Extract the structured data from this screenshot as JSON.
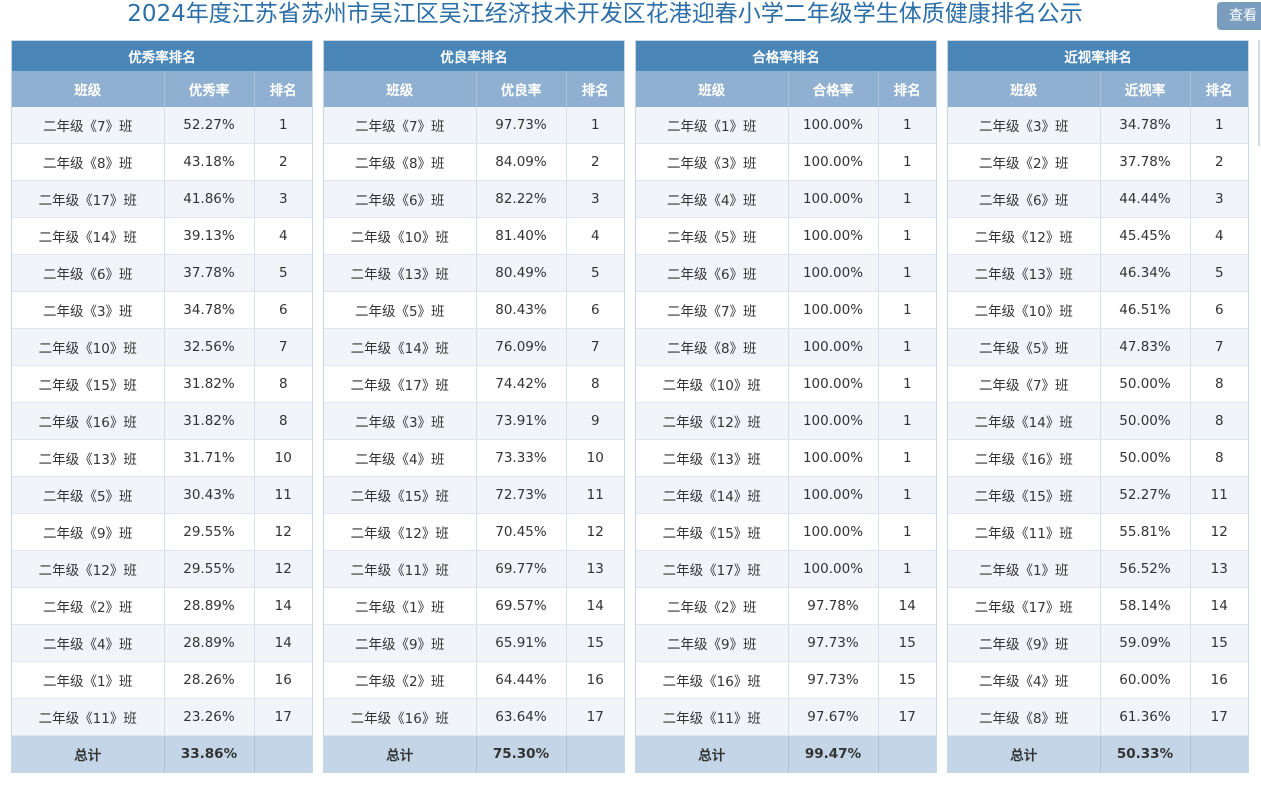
{
  "page": {
    "title": "2024年度江苏省苏州市吴江区吴江经济技术开发区花港迎春小学二年级学生体质健康排名公示",
    "view_button": "查看"
  },
  "panels": [
    {
      "caption": "优秀率排名",
      "headers": [
        "班级",
        "优秀率",
        "排名"
      ],
      "rows": [
        [
          "二年级《7》班",
          "52.27%",
          "1"
        ],
        [
          "二年级《8》班",
          "43.18%",
          "2"
        ],
        [
          "二年级《17》班",
          "41.86%",
          "3"
        ],
        [
          "二年级《14》班",
          "39.13%",
          "4"
        ],
        [
          "二年级《6》班",
          "37.78%",
          "5"
        ],
        [
          "二年级《3》班",
          "34.78%",
          "6"
        ],
        [
          "二年级《10》班",
          "32.56%",
          "7"
        ],
        [
          "二年级《15》班",
          "31.82%",
          "8"
        ],
        [
          "二年级《16》班",
          "31.82%",
          "8"
        ],
        [
          "二年级《13》班",
          "31.71%",
          "10"
        ],
        [
          "二年级《5》班",
          "30.43%",
          "11"
        ],
        [
          "二年级《9》班",
          "29.55%",
          "12"
        ],
        [
          "二年级《12》班",
          "29.55%",
          "12"
        ],
        [
          "二年级《2》班",
          "28.89%",
          "14"
        ],
        [
          "二年级《4》班",
          "28.89%",
          "14"
        ],
        [
          "二年级《1》班",
          "28.26%",
          "16"
        ],
        [
          "二年级《11》班",
          "23.26%",
          "17"
        ]
      ],
      "total_label": "总计",
      "total_value": "33.86%"
    },
    {
      "caption": "优良率排名",
      "headers": [
        "班级",
        "优良率",
        "排名"
      ],
      "rows": [
        [
          "二年级《7》班",
          "97.73%",
          "1"
        ],
        [
          "二年级《8》班",
          "84.09%",
          "2"
        ],
        [
          "二年级《6》班",
          "82.22%",
          "3"
        ],
        [
          "二年级《10》班",
          "81.40%",
          "4"
        ],
        [
          "二年级《13》班",
          "80.49%",
          "5"
        ],
        [
          "二年级《5》班",
          "80.43%",
          "6"
        ],
        [
          "二年级《14》班",
          "76.09%",
          "7"
        ],
        [
          "二年级《17》班",
          "74.42%",
          "8"
        ],
        [
          "二年级《3》班",
          "73.91%",
          "9"
        ],
        [
          "二年级《4》班",
          "73.33%",
          "10"
        ],
        [
          "二年级《15》班",
          "72.73%",
          "11"
        ],
        [
          "二年级《12》班",
          "70.45%",
          "12"
        ],
        [
          "二年级《11》班",
          "69.77%",
          "13"
        ],
        [
          "二年级《1》班",
          "69.57%",
          "14"
        ],
        [
          "二年级《9》班",
          "65.91%",
          "15"
        ],
        [
          "二年级《2》班",
          "64.44%",
          "16"
        ],
        [
          "二年级《16》班",
          "63.64%",
          "17"
        ]
      ],
      "total_label": "总计",
      "total_value": "75.30%"
    },
    {
      "caption": "合格率排名",
      "headers": [
        "班级",
        "合格率",
        "排名"
      ],
      "rows": [
        [
          "二年级《1》班",
          "100.00%",
          "1"
        ],
        [
          "二年级《3》班",
          "100.00%",
          "1"
        ],
        [
          "二年级《4》班",
          "100.00%",
          "1"
        ],
        [
          "二年级《5》班",
          "100.00%",
          "1"
        ],
        [
          "二年级《6》班",
          "100.00%",
          "1"
        ],
        [
          "二年级《7》班",
          "100.00%",
          "1"
        ],
        [
          "二年级《8》班",
          "100.00%",
          "1"
        ],
        [
          "二年级《10》班",
          "100.00%",
          "1"
        ],
        [
          "二年级《12》班",
          "100.00%",
          "1"
        ],
        [
          "二年级《13》班",
          "100.00%",
          "1"
        ],
        [
          "二年级《14》班",
          "100.00%",
          "1"
        ],
        [
          "二年级《15》班",
          "100.00%",
          "1"
        ],
        [
          "二年级《17》班",
          "100.00%",
          "1"
        ],
        [
          "二年级《2》班",
          "97.78%",
          "14"
        ],
        [
          "二年级《9》班",
          "97.73%",
          "15"
        ],
        [
          "二年级《16》班",
          "97.73%",
          "15"
        ],
        [
          "二年级《11》班",
          "97.67%",
          "17"
        ]
      ],
      "total_label": "总计",
      "total_value": "99.47%"
    },
    {
      "caption": "近视率排名",
      "headers": [
        "班级",
        "近视率",
        "排名"
      ],
      "rows": [
        [
          "二年级《3》班",
          "34.78%",
          "1"
        ],
        [
          "二年级《2》班",
          "37.78%",
          "2"
        ],
        [
          "二年级《6》班",
          "44.44%",
          "3"
        ],
        [
          "二年级《12》班",
          "45.45%",
          "4"
        ],
        [
          "二年级《13》班",
          "46.34%",
          "5"
        ],
        [
          "二年级《10》班",
          "46.51%",
          "6"
        ],
        [
          "二年级《5》班",
          "47.83%",
          "7"
        ],
        [
          "二年级《7》班",
          "50.00%",
          "8"
        ],
        [
          "二年级《14》班",
          "50.00%",
          "8"
        ],
        [
          "二年级《16》班",
          "50.00%",
          "8"
        ],
        [
          "二年级《15》班",
          "52.27%",
          "11"
        ],
        [
          "二年级《11》班",
          "55.81%",
          "12"
        ],
        [
          "二年级《1》班",
          "56.52%",
          "13"
        ],
        [
          "二年级《17》班",
          "58.14%",
          "14"
        ],
        [
          "二年级《9》班",
          "59.09%",
          "15"
        ],
        [
          "二年级《4》班",
          "60.00%",
          "16"
        ],
        [
          "二年级《8》班",
          "61.36%",
          "17"
        ]
      ],
      "total_label": "总计",
      "total_value": "50.33%"
    }
  ]
}
